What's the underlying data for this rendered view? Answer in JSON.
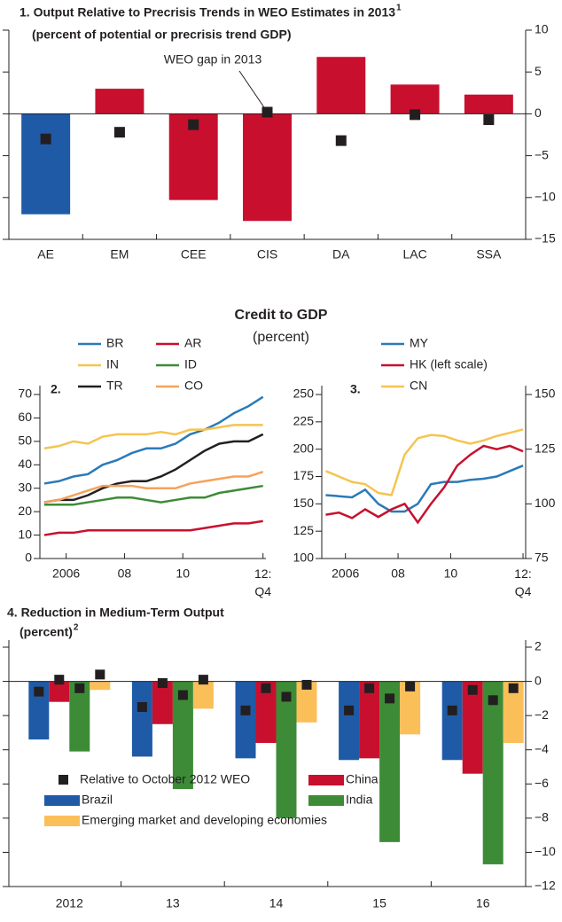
{
  "chart_data": [
    {
      "type": "bar",
      "title": "1. Output Relative to Precrisis Trends in WEO Estimates in 2013",
      "title_note": "1",
      "subtitle": "(percent of potential or precrisis trend GDP)",
      "categories": [
        "AE",
        "EM",
        "CEE",
        "CIS",
        "DA",
        "LAC",
        "SSA"
      ],
      "values": [
        -12,
        3,
        -10.3,
        -12.8,
        6.8,
        3.5,
        2.3
      ],
      "colors": [
        "#1f5aa6",
        "#c8102e",
        "#c8102e",
        "#c8102e",
        "#c8102e",
        "#c8102e",
        "#c8102e"
      ],
      "markers": {
        "name": "WEO gap in 2013",
        "color": "#231f20",
        "values": [
          -3,
          -2.2,
          -1.3,
          0.2,
          -3.2,
          -0.1,
          -0.7
        ]
      },
      "ylim": [
        -15,
        10
      ],
      "yticks": [
        {
          "value": -15,
          "label": "−15"
        },
        {
          "value": -10,
          "label": "−10"
        },
        {
          "value": -5,
          "label": "−5"
        },
        0,
        5,
        10
      ]
    },
    {
      "type": "line",
      "panel_label": "2.",
      "x": [
        2005.25,
        2005.75,
        2006.25,
        2006.75,
        2007.25,
        2007.75,
        2008.25,
        2008.75,
        2009.25,
        2009.75,
        2010.25,
        2010.75,
        2011.25,
        2011.75,
        2012.25,
        2012.75
      ],
      "xlim": [
        2005.1,
        2012.85
      ],
      "xticks": [
        {
          "value": 2006,
          "label": "2006"
        },
        {
          "value": 2008,
          "label": "08"
        },
        {
          "value": 2010,
          "label": "10"
        },
        {
          "value": 2012.75,
          "label": "12:\nQ4"
        }
      ],
      "ylim": [
        0,
        70
      ],
      "yticks": [
        0,
        10,
        20,
        30,
        40,
        50,
        60,
        70
      ],
      "series": [
        {
          "name": "BR",
          "color": "#2a7ab8",
          "values": [
            32,
            33,
            35,
            36,
            40,
            42,
            45,
            47,
            47,
            49,
            53,
            55,
            58,
            62,
            65,
            69
          ]
        },
        {
          "name": "IN",
          "color": "#f5c451",
          "values": [
            47,
            48,
            50,
            49,
            52,
            53,
            53,
            53,
            54,
            53,
            55,
            55,
            56,
            57,
            57,
            57
          ]
        },
        {
          "name": "TR",
          "color": "#231f20",
          "values": [
            24,
            25,
            25,
            27,
            30,
            32,
            33,
            33,
            35,
            38,
            42,
            46,
            49,
            50,
            50,
            53
          ]
        },
        {
          "name": "AR",
          "color": "#c8102e",
          "values": [
            10,
            11,
            11,
            12,
            12,
            12,
            12,
            12,
            12,
            12,
            12,
            13,
            14,
            15,
            15,
            16
          ]
        },
        {
          "name": "ID",
          "color": "#3d8b37",
          "values": [
            23,
            23,
            23,
            24,
            25,
            26,
            26,
            25,
            24,
            25,
            26,
            26,
            28,
            29,
            30,
            31
          ]
        },
        {
          "name": "CO",
          "color": "#f5a25d",
          "values": [
            24,
            25,
            27,
            29,
            31,
            31,
            31,
            30,
            30,
            30,
            32,
            33,
            34,
            35,
            35,
            37
          ]
        }
      ]
    },
    {
      "type": "line",
      "panel_label": "3.",
      "x": [
        2005.25,
        2005.75,
        2006.25,
        2006.75,
        2007.25,
        2007.75,
        2008.25,
        2008.75,
        2009.25,
        2009.75,
        2010.25,
        2010.75,
        2011.25,
        2011.75,
        2012.25,
        2012.75
      ],
      "xlim": [
        2005.1,
        2012.85
      ],
      "xticks": [
        {
          "value": 2006,
          "label": "2006"
        },
        {
          "value": 2008,
          "label": "08"
        },
        {
          "value": 2010,
          "label": "10"
        },
        {
          "value": 2012.75,
          "label": "12:\nQ4"
        }
      ],
      "ylim": [
        100,
        250
      ],
      "yticks": [
        100,
        125,
        150,
        175,
        200,
        225,
        250
      ],
      "y2lim": [
        75,
        150
      ],
      "y2ticks": [
        75,
        100,
        125,
        150
      ],
      "series": [
        {
          "name": "MY",
          "color": "#2a7ab8",
          "axis": "y2",
          "values": [
            104,
            103.5,
            103,
            106.5,
            100,
            96.5,
            96.5,
            100,
            109,
            110,
            110,
            111,
            111.5,
            112.5,
            115,
            117.5
          ]
        },
        {
          "name": "HK (left scale)",
          "color": "#c8102e",
          "values": [
            140,
            142,
            137,
            145,
            138,
            145,
            150,
            133,
            150,
            165,
            185,
            195,
            203,
            200,
            203,
            198
          ]
        },
        {
          "name": "CN",
          "color": "#f5c451",
          "axis": "y2",
          "values": [
            115,
            112.5,
            110,
            109,
            105,
            104,
            122.5,
            130,
            131.5,
            131,
            129,
            127.5,
            129,
            131,
            132.5,
            134
          ]
        }
      ]
    },
    {
      "type": "grouped_bar",
      "title": "4. Reduction in Medium-Term Output",
      "subtitle": "(percent)",
      "subtitle_note": "2",
      "categories": [
        "2012",
        "13",
        "14",
        "15",
        "16"
      ],
      "series": [
        {
          "name": "Brazil",
          "color": "#1f5aa6",
          "values": [
            -3.4,
            -4.4,
            -4.5,
            -4.6,
            -4.6
          ]
        },
        {
          "name": "China",
          "color": "#c8102e",
          "values": [
            -1.2,
            -2.5,
            -3.6,
            -4.5,
            -5.4
          ]
        },
        {
          "name": "India",
          "color": "#3d8b37",
          "values": [
            -4.1,
            -6.3,
            -8.0,
            -9.4,
            -10.7
          ]
        },
        {
          "name": "Emerging market and developing economies",
          "color": "#fbbf5a",
          "values": [
            -0.5,
            -1.6,
            -2.4,
            -3.1,
            -3.6
          ]
        }
      ],
      "markers": {
        "name": "Relative to October 2012 WEO",
        "color": "#231f20",
        "values": [
          [
            -0.6,
            -1.5,
            -1.7,
            -1.7,
            -1.7
          ],
          [
            0.1,
            -0.1,
            -0.4,
            -0.4,
            -0.5
          ],
          [
            -0.4,
            -0.8,
            -0.9,
            -1.0,
            -1.1
          ],
          [
            0.4,
            0.1,
            -0.2,
            -0.3,
            -0.4
          ]
        ]
      },
      "ylim": [
        -12,
        2
      ],
      "yticks": [
        {
          "value": -12,
          "label": "−12"
        },
        {
          "value": -10,
          "label": "−10"
        },
        {
          "value": -8,
          "label": "−8"
        },
        {
          "value": -6,
          "label": "−6"
        },
        {
          "value": -4,
          "label": "−4"
        },
        {
          "value": -2,
          "label": "−2"
        },
        0,
        2
      ]
    }
  ],
  "heading": {
    "title": "Credit to GDP",
    "subtitle": "(percent)"
  }
}
